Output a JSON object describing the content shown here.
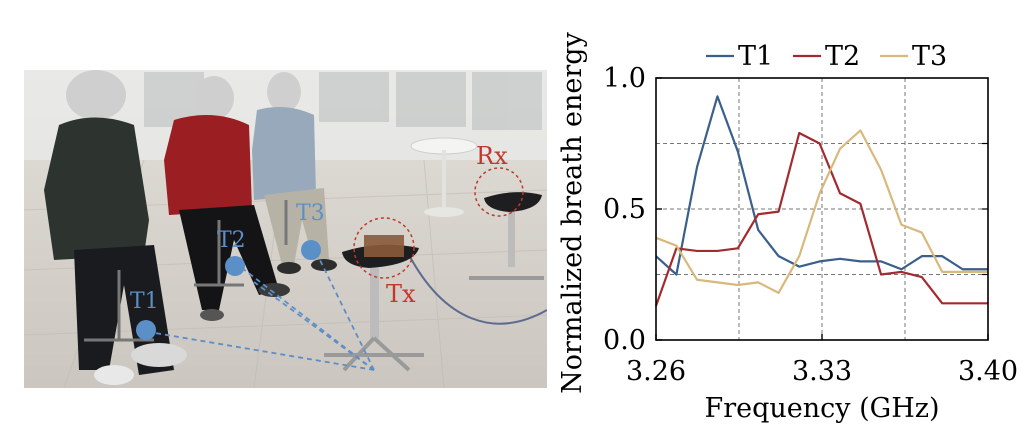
{
  "photo": {
    "labels": {
      "rx": "Rx",
      "tx": "Tx",
      "t1": "T1",
      "t2": "T2",
      "t3": "T3"
    },
    "colors": {
      "target_blue": "#5b8fc7",
      "device_red": "#c0392b"
    }
  },
  "chart_data": {
    "type": "line",
    "xlabel": "Frequency (GHz)",
    "ylabel": "Normalized breath energy",
    "xlim": [
      3.26,
      3.4
    ],
    "ylim": [
      0.0,
      1.0
    ],
    "xticks": [
      3.26,
      3.33,
      3.4
    ],
    "xtick_labels": [
      "3.26",
      "3.33",
      "3.40"
    ],
    "yticks": [
      0.0,
      0.5,
      1.0
    ],
    "ytick_labels": [
      "0.0",
      "0.5",
      "1.0"
    ],
    "grid": true,
    "legend_position": "top",
    "x": [
      3.26,
      3.2686,
      3.2773,
      3.2859,
      3.2945,
      3.3031,
      3.3117,
      3.3204,
      3.329,
      3.3376,
      3.3462,
      3.3549,
      3.3635,
      3.3721,
      3.3807,
      3.3893,
      3.4
    ],
    "series": [
      {
        "name": "T1",
        "color": "#3b5f8c",
        "values": [
          0.32,
          0.25,
          0.66,
          0.93,
          0.72,
          0.42,
          0.32,
          0.28,
          0.3,
          0.31,
          0.3,
          0.3,
          0.27,
          0.32,
          0.32,
          0.27,
          0.27
        ]
      },
      {
        "name": "T2",
        "color": "#a32a2f",
        "values": [
          0.13,
          0.35,
          0.34,
          0.34,
          0.35,
          0.48,
          0.49,
          0.79,
          0.75,
          0.56,
          0.52,
          0.25,
          0.26,
          0.24,
          0.14,
          0.14,
          0.14
        ]
      },
      {
        "name": "T3",
        "color": "#d8b97c",
        "values": [
          0.39,
          0.36,
          0.23,
          0.22,
          0.21,
          0.22,
          0.18,
          0.32,
          0.56,
          0.73,
          0.8,
          0.65,
          0.44,
          0.41,
          0.26,
          0.26,
          0.26
        ]
      }
    ]
  }
}
